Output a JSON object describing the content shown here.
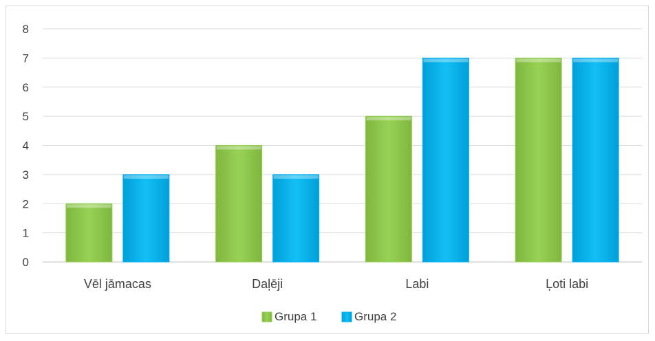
{
  "chart_data": {
    "type": "bar",
    "categories": [
      "Vēl jāmacas",
      "Daļēji",
      "Labi",
      "Ļoti labi"
    ],
    "series": [
      {
        "name": "Grupa 1",
        "values": [
          2,
          4,
          5,
          7
        ],
        "color": "#92d050"
      },
      {
        "name": "Grupa 2",
        "values": [
          3,
          3,
          7,
          7
        ],
        "color": "#00b0f0"
      }
    ],
    "ylim": [
      0,
      8
    ],
    "yticks": [
      0,
      1,
      2,
      3,
      4,
      5,
      6,
      7,
      8
    ],
    "grid": true,
    "legend_position": "bottom"
  }
}
